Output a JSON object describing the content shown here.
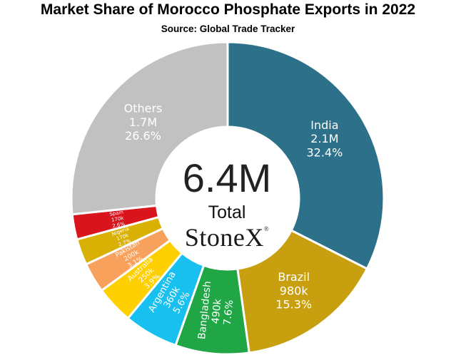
{
  "header": {
    "title": "Market Share of Morocco Phosphate Exports in 2022",
    "subtitle": "Source: Global Trade Tracker"
  },
  "center": {
    "total_value": "6.4M",
    "total_label": "Total",
    "logo_text": "StoneX",
    "logo_mark": "®"
  },
  "chart_data": {
    "type": "pie",
    "style": "donut",
    "title": "Market Share of Morocco Phosphate Exports in 2022",
    "subtitle": "Source: Global Trade Tracker",
    "total": "6.4M",
    "slices": [
      {
        "name": "India",
        "value": "2.1M",
        "percent": 32.4,
        "percent_label": "32.4%",
        "color": "#2c7089"
      },
      {
        "name": "Brazil",
        "value": "980k",
        "percent": 15.3,
        "percent_label": "15.3%",
        "color": "#c8a00f"
      },
      {
        "name": "Bangladesh",
        "value": "490k",
        "percent": 7.6,
        "percent_label": "7.6%",
        "color": "#21a645"
      },
      {
        "name": "Argentina",
        "value": "360k",
        "percent": 5.6,
        "percent_label": "5.6%",
        "color": "#17c0ef"
      },
      {
        "name": "Australia",
        "value": "250k",
        "percent": 3.9,
        "percent_label": "3.9%",
        "color": "#ffd000"
      },
      {
        "name": "Pakistan",
        "value": "200k",
        "percent": 3.1,
        "percent_label": "3.1%",
        "color": "#f7a15c"
      },
      {
        "name": "Nigeria",
        "value": "170k",
        "percent": 2.7,
        "percent_label": "2.7%",
        "color": "#d9b104"
      },
      {
        "name": "Spain",
        "value": "170k",
        "percent": 2.6,
        "percent_label": "2.6%",
        "color": "#d9141d"
      },
      {
        "name": "Others",
        "value": "1.7M",
        "percent": 26.6,
        "percent_label": "26.6%",
        "color": "#c1c1c1"
      }
    ]
  }
}
